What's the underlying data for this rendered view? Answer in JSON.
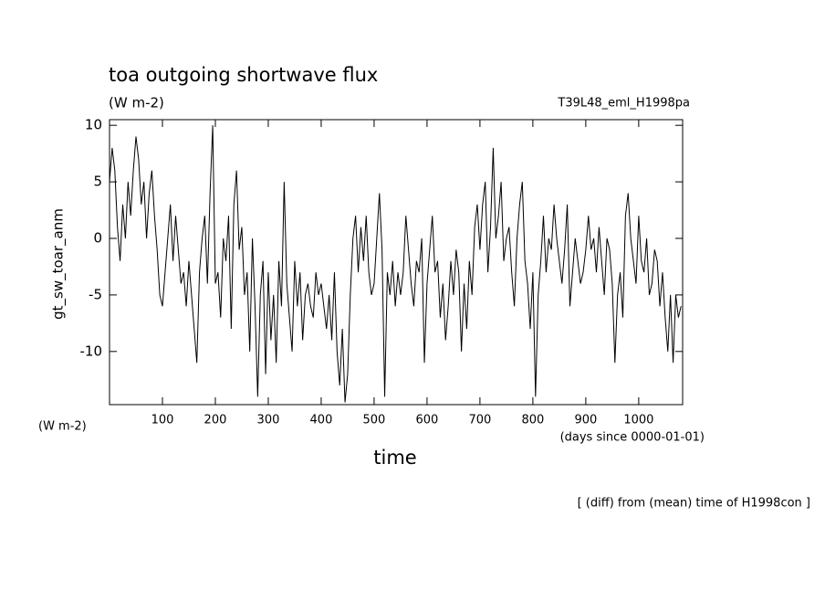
{
  "chart_data": {
    "type": "line",
    "title": "toa outgoing shortwave flux",
    "units": "(W m-2)",
    "run_label": "T39L48_eml_H1998pa",
    "y_label": "gt_sw_toar_anm",
    "y_units": "(W m-2)",
    "x_label": "time",
    "x_units": "(days since 0000-01-01)",
    "footnote": "[ (diff) from (mean) time of H1998con ]",
    "xlim": [
      0,
      1083
    ],
    "ylim": [
      -14.7,
      10.5
    ],
    "xticks": [
      100,
      200,
      300,
      400,
      500,
      600,
      700,
      800,
      900,
      1000
    ],
    "yticks": [
      -10,
      -5,
      0,
      5,
      10
    ],
    "color": "#000000",
    "x": [
      0,
      5,
      10,
      15,
      20,
      25,
      30,
      35,
      40,
      45,
      50,
      55,
      60,
      65,
      70,
      75,
      80,
      85,
      90,
      95,
      100,
      105,
      110,
      115,
      120,
      125,
      130,
      135,
      140,
      145,
      150,
      155,
      160,
      165,
      170,
      175,
      180,
      185,
      190,
      195,
      200,
      205,
      210,
      215,
      220,
      225,
      230,
      235,
      240,
      245,
      250,
      255,
      260,
      265,
      270,
      275,
      280,
      285,
      290,
      295,
      300,
      305,
      310,
      315,
      320,
      325,
      330,
      335,
      340,
      345,
      350,
      355,
      360,
      365,
      370,
      375,
      380,
      385,
      390,
      395,
      400,
      405,
      410,
      415,
      420,
      425,
      430,
      435,
      440,
      445,
      450,
      455,
      460,
      465,
      470,
      475,
      480,
      485,
      490,
      495,
      500,
      505,
      510,
      515,
      520,
      525,
      530,
      535,
      540,
      545,
      550,
      555,
      560,
      565,
      570,
      575,
      580,
      585,
      590,
      595,
      600,
      605,
      610,
      615,
      620,
      625,
      630,
      635,
      640,
      645,
      650,
      655,
      660,
      665,
      670,
      675,
      680,
      685,
      690,
      695,
      700,
      705,
      710,
      715,
      720,
      725,
      730,
      735,
      740,
      745,
      750,
      755,
      760,
      765,
      770,
      775,
      780,
      785,
      790,
      795,
      800,
      805,
      810,
      815,
      820,
      825,
      830,
      835,
      840,
      845,
      850,
      855,
      860,
      865,
      870,
      875,
      880,
      885,
      890,
      895,
      900,
      905,
      910,
      915,
      920,
      925,
      930,
      935,
      940,
      945,
      950,
      955,
      960,
      965,
      970,
      975,
      980,
      985,
      990,
      995,
      1000,
      1005,
      1010,
      1015,
      1020,
      1025,
      1030,
      1035,
      1040,
      1045,
      1050,
      1055,
      1060,
      1065,
      1070,
      1075,
      1080
    ],
    "values": [
      5,
      8,
      6,
      1,
      -2,
      3,
      0,
      5,
      2,
      6,
      9,
      7,
      3,
      5,
      0,
      4,
      6,
      2,
      -1,
      -5,
      -6,
      -3,
      0,
      3,
      -2,
      2,
      -1,
      -4,
      -3,
      -6,
      -2,
      -5,
      -8,
      -11,
      -3,
      0,
      2,
      -4,
      4,
      10,
      -4,
      -3,
      -7,
      0,
      -2,
      2,
      -8,
      3,
      6,
      -1,
      1,
      -5,
      -3,
      -10,
      0,
      -6,
      -14,
      -5,
      -2,
      -12,
      -3,
      -9,
      -5,
      -11,
      -2,
      -6,
      5,
      -4,
      -7,
      -10,
      -2,
      -6,
      -3,
      -9,
      -5,
      -4,
      -6,
      -7,
      -3,
      -5,
      -4,
      -6,
      -8,
      -5,
      -9,
      -3,
      -10,
      -13,
      -8,
      -14.5,
      -12,
      -5,
      0,
      2,
      -3,
      1,
      -2,
      2,
      -3,
      -5,
      -4,
      0,
      4,
      -1,
      -14,
      -3,
      -5,
      -2,
      -6,
      -3,
      -5,
      -3,
      2,
      -1,
      -4,
      -6,
      -2,
      -3,
      0,
      -11,
      -4,
      -1,
      2,
      -3,
      -2,
      -7,
      -4,
      -9,
      -6,
      -2,
      -5,
      -1,
      -3,
      -10,
      -4,
      -8,
      -2,
      -5,
      1,
      3,
      -1,
      3,
      5,
      -3,
      1,
      8,
      0,
      2,
      5,
      -2,
      0,
      1,
      -3,
      -6,
      0,
      3,
      5,
      -2,
      -4,
      -8,
      -3,
      -14,
      -5,
      -2,
      2,
      -3,
      0,
      -1,
      3,
      0,
      -2,
      -4,
      -1,
      3,
      -6,
      -3,
      0,
      -2,
      -4,
      -3,
      -1,
      2,
      -1,
      0,
      -3,
      1,
      -2,
      -5,
      0,
      -1,
      -4,
      -11,
      -5,
      -3,
      -7,
      2,
      4,
      0,
      -2,
      -4,
      2,
      -2,
      -3,
      0,
      -5,
      -4,
      -1,
      -2,
      -6,
      -3,
      -7,
      -10,
      -5,
      -11,
      -5,
      -7,
      -6
    ]
  }
}
